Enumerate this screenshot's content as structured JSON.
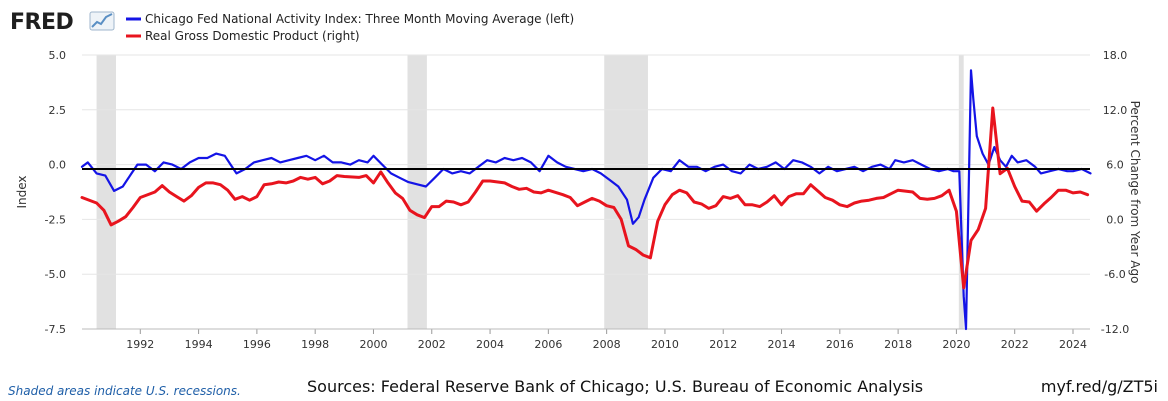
{
  "branding": {
    "logo_text": "FRED"
  },
  "footer": {
    "recession_note": "Shaded areas indicate U.S. recessions.",
    "sources": "Sources: Federal Reserve Bank of Chicago; U.S. Bureau of Economic Analysis",
    "short_url": "myf.red/g/ZT5i"
  },
  "chart_data": {
    "type": "line",
    "title": "",
    "x_range": [
      "1990-01",
      "2024-08"
    ],
    "x_ticks": [
      "1992",
      "1994",
      "1996",
      "1998",
      "2000",
      "2002",
      "2004",
      "2006",
      "2008",
      "2010",
      "2012",
      "2014",
      "2016",
      "2018",
      "2020",
      "2022",
      "2024"
    ],
    "left_axis": {
      "label": "Index",
      "range": [
        -7.5,
        5.0
      ],
      "ticks": [
        "5.0",
        "2.5",
        "0.0",
        "-2.5",
        "-5.0",
        "-7.5"
      ]
    },
    "right_axis": {
      "label": "Percent Change from Year Ago",
      "range": [
        -12.0,
        18.0
      ],
      "ticks": [
        "18.0",
        "12.0",
        "6.0",
        "0.0",
        "-6.0",
        "-12.0"
      ]
    },
    "reference_line": {
      "axis": "left",
      "value": -0.2,
      "color": "#000000"
    },
    "grid": true,
    "legend_position": "top-left",
    "recessions": [
      {
        "start": "1990-07",
        "end": "1991-03"
      },
      {
        "start": "2001-03",
        "end": "2001-11"
      },
      {
        "start": "2007-12",
        "end": "2009-06"
      },
      {
        "start": "2020-02",
        "end": "2020-04"
      }
    ],
    "series": [
      {
        "name": "Chicago Fed National Activity Index: Three Month Moving Average (left)",
        "axis": "left",
        "color": "#1414e6",
        "points": [
          [
            1990.0,
            -0.1
          ],
          [
            1990.2,
            0.1
          ],
          [
            1990.5,
            -0.4
          ],
          [
            1990.8,
            -0.5
          ],
          [
            1991.1,
            -1.2
          ],
          [
            1991.4,
            -1.0
          ],
          [
            1991.7,
            -0.4
          ],
          [
            1991.9,
            0.0
          ],
          [
            1992.2,
            0.0
          ],
          [
            1992.5,
            -0.3
          ],
          [
            1992.8,
            0.1
          ],
          [
            1993.1,
            0.0
          ],
          [
            1993.4,
            -0.2
          ],
          [
            1993.7,
            0.1
          ],
          [
            1994.0,
            0.3
          ],
          [
            1994.3,
            0.3
          ],
          [
            1994.6,
            0.5
          ],
          [
            1994.9,
            0.4
          ],
          [
            1995.1,
            0.0
          ],
          [
            1995.3,
            -0.4
          ],
          [
            1995.6,
            -0.2
          ],
          [
            1995.9,
            0.1
          ],
          [
            1996.2,
            0.2
          ],
          [
            1996.5,
            0.3
          ],
          [
            1996.8,
            0.1
          ],
          [
            1997.1,
            0.2
          ],
          [
            1997.4,
            0.3
          ],
          [
            1997.7,
            0.4
          ],
          [
            1998.0,
            0.2
          ],
          [
            1998.3,
            0.4
          ],
          [
            1998.6,
            0.1
          ],
          [
            1998.9,
            0.1
          ],
          [
            1999.2,
            0.0
          ],
          [
            1999.5,
            0.2
          ],
          [
            1999.8,
            0.1
          ],
          [
            2000.0,
            0.4
          ],
          [
            2000.3,
            0.0
          ],
          [
            2000.6,
            -0.4
          ],
          [
            2000.9,
            -0.6
          ],
          [
            2001.2,
            -0.8
          ],
          [
            2001.5,
            -0.9
          ],
          [
            2001.8,
            -1.0
          ],
          [
            2002.1,
            -0.6
          ],
          [
            2002.4,
            -0.2
          ],
          [
            2002.7,
            -0.4
          ],
          [
            2003.0,
            -0.3
          ],
          [
            2003.3,
            -0.4
          ],
          [
            2003.6,
            -0.1
          ],
          [
            2003.9,
            0.2
          ],
          [
            2004.2,
            0.1
          ],
          [
            2004.5,
            0.3
          ],
          [
            2004.8,
            0.2
          ],
          [
            2005.1,
            0.3
          ],
          [
            2005.4,
            0.1
          ],
          [
            2005.7,
            -0.3
          ],
          [
            2006.0,
            0.4
          ],
          [
            2006.3,
            0.1
          ],
          [
            2006.6,
            -0.1
          ],
          [
            2006.9,
            -0.2
          ],
          [
            2007.2,
            -0.3
          ],
          [
            2007.5,
            -0.2
          ],
          [
            2007.8,
            -0.4
          ],
          [
            2008.1,
            -0.7
          ],
          [
            2008.4,
            -1.0
          ],
          [
            2008.7,
            -1.6
          ],
          [
            2008.9,
            -2.7
          ],
          [
            2009.1,
            -2.4
          ],
          [
            2009.3,
            -1.6
          ],
          [
            2009.6,
            -0.6
          ],
          [
            2009.9,
            -0.2
          ],
          [
            2010.2,
            -0.3
          ],
          [
            2010.5,
            0.2
          ],
          [
            2010.8,
            -0.1
          ],
          [
            2011.1,
            -0.1
          ],
          [
            2011.4,
            -0.3
          ],
          [
            2011.7,
            -0.1
          ],
          [
            2012.0,
            0.0
          ],
          [
            2012.3,
            -0.3
          ],
          [
            2012.6,
            -0.4
          ],
          [
            2012.9,
            0.0
          ],
          [
            2013.2,
            -0.2
          ],
          [
            2013.5,
            -0.1
          ],
          [
            2013.8,
            0.1
          ],
          [
            2014.1,
            -0.2
          ],
          [
            2014.4,
            0.2
          ],
          [
            2014.7,
            0.1
          ],
          [
            2015.0,
            -0.1
          ],
          [
            2015.3,
            -0.4
          ],
          [
            2015.6,
            -0.1
          ],
          [
            2015.9,
            -0.3
          ],
          [
            2016.2,
            -0.2
          ],
          [
            2016.5,
            -0.1
          ],
          [
            2016.8,
            -0.3
          ],
          [
            2017.1,
            -0.1
          ],
          [
            2017.4,
            0.0
          ],
          [
            2017.7,
            -0.2
          ],
          [
            2017.9,
            0.2
          ],
          [
            2018.2,
            0.1
          ],
          [
            2018.5,
            0.2
          ],
          [
            2018.8,
            0.0
          ],
          [
            2019.1,
            -0.2
          ],
          [
            2019.4,
            -0.3
          ],
          [
            2019.7,
            -0.2
          ],
          [
            2019.9,
            -0.3
          ],
          [
            2020.1,
            -0.3
          ],
          [
            2020.25,
            -6.0
          ],
          [
            2020.33,
            -7.5
          ],
          [
            2020.5,
            4.3
          ],
          [
            2020.58,
            3.0
          ],
          [
            2020.7,
            1.3
          ],
          [
            2020.9,
            0.5
          ],
          [
            2021.1,
            0.0
          ],
          [
            2021.3,
            0.8
          ],
          [
            2021.5,
            0.2
          ],
          [
            2021.7,
            -0.1
          ],
          [
            2021.9,
            0.4
          ],
          [
            2022.1,
            0.1
          ],
          [
            2022.4,
            0.2
          ],
          [
            2022.7,
            -0.1
          ],
          [
            2022.9,
            -0.4
          ],
          [
            2023.2,
            -0.3
          ],
          [
            2023.5,
            -0.2
          ],
          [
            2023.8,
            -0.3
          ],
          [
            2024.0,
            -0.3
          ],
          [
            2024.3,
            -0.2
          ],
          [
            2024.6,
            -0.4
          ]
        ]
      },
      {
        "name": "Real Gross Domestic Product (right)",
        "axis": "right",
        "color": "#e8141e",
        "points": [
          [
            1990.0,
            2.4
          ],
          [
            1990.5,
            1.8
          ],
          [
            1990.75,
            1.0
          ],
          [
            1991.0,
            -0.6
          ],
          [
            1991.25,
            -0.2
          ],
          [
            1991.5,
            0.3
          ],
          [
            1991.75,
            1.3
          ],
          [
            1992.0,
            2.4
          ],
          [
            1992.5,
            3.0
          ],
          [
            1992.75,
            3.7
          ],
          [
            1993.0,
            3.0
          ],
          [
            1993.25,
            2.5
          ],
          [
            1993.5,
            2.0
          ],
          [
            1993.75,
            2.6
          ],
          [
            1994.0,
            3.5
          ],
          [
            1994.25,
            4.0
          ],
          [
            1994.5,
            4.0
          ],
          [
            1994.75,
            3.8
          ],
          [
            1995.0,
            3.2
          ],
          [
            1995.25,
            2.2
          ],
          [
            1995.5,
            2.5
          ],
          [
            1995.75,
            2.1
          ],
          [
            1996.0,
            2.5
          ],
          [
            1996.25,
            3.8
          ],
          [
            1996.5,
            3.9
          ],
          [
            1996.75,
            4.1
          ],
          [
            1997.0,
            4.0
          ],
          [
            1997.25,
            4.2
          ],
          [
            1997.5,
            4.6
          ],
          [
            1997.75,
            4.4
          ],
          [
            1998.0,
            4.6
          ],
          [
            1998.25,
            3.9
          ],
          [
            1998.5,
            4.2
          ],
          [
            1998.75,
            4.8
          ],
          [
            1999.0,
            4.7
          ],
          [
            1999.5,
            4.6
          ],
          [
            1999.75,
            4.8
          ],
          [
            2000.0,
            4.0
          ],
          [
            2000.25,
            5.2
          ],
          [
            2000.5,
            4.0
          ],
          [
            2000.75,
            2.9
          ],
          [
            2001.0,
            2.3
          ],
          [
            2001.25,
            1.0
          ],
          [
            2001.5,
            0.5
          ],
          [
            2001.75,
            0.2
          ],
          [
            2002.0,
            1.4
          ],
          [
            2002.25,
            1.4
          ],
          [
            2002.5,
            2.0
          ],
          [
            2002.75,
            1.9
          ],
          [
            2003.0,
            1.6
          ],
          [
            2003.25,
            1.9
          ],
          [
            2003.5,
            3.0
          ],
          [
            2003.75,
            4.2
          ],
          [
            2004.0,
            4.2
          ],
          [
            2004.5,
            4.0
          ],
          [
            2004.75,
            3.6
          ],
          [
            2005.0,
            3.3
          ],
          [
            2005.25,
            3.4
          ],
          [
            2005.5,
            3.0
          ],
          [
            2005.75,
            2.9
          ],
          [
            2006.0,
            3.2
          ],
          [
            2006.5,
            2.7
          ],
          [
            2006.75,
            2.4
          ],
          [
            2007.0,
            1.5
          ],
          [
            2007.25,
            1.9
          ],
          [
            2007.5,
            2.3
          ],
          [
            2007.75,
            2.0
          ],
          [
            2008.0,
            1.5
          ],
          [
            2008.25,
            1.3
          ],
          [
            2008.5,
            0.0
          ],
          [
            2008.75,
            -2.9
          ],
          [
            2009.0,
            -3.3
          ],
          [
            2009.25,
            -3.9
          ],
          [
            2009.5,
            -4.2
          ],
          [
            2009.75,
            -0.2
          ],
          [
            2010.0,
            1.6
          ],
          [
            2010.25,
            2.7
          ],
          [
            2010.5,
            3.2
          ],
          [
            2010.75,
            2.9
          ],
          [
            2011.0,
            1.9
          ],
          [
            2011.25,
            1.7
          ],
          [
            2011.5,
            1.2
          ],
          [
            2011.75,
            1.5
          ],
          [
            2012.0,
            2.5
          ],
          [
            2012.25,
            2.3
          ],
          [
            2012.5,
            2.6
          ],
          [
            2012.75,
            1.6
          ],
          [
            2013.0,
            1.6
          ],
          [
            2013.25,
            1.4
          ],
          [
            2013.5,
            1.9
          ],
          [
            2013.75,
            2.6
          ],
          [
            2014.0,
            1.6
          ],
          [
            2014.25,
            2.5
          ],
          [
            2014.5,
            2.8
          ],
          [
            2014.75,
            2.8
          ],
          [
            2015.0,
            3.8
          ],
          [
            2015.25,
            3.1
          ],
          [
            2015.5,
            2.4
          ],
          [
            2015.75,
            2.1
          ],
          [
            2016.0,
            1.6
          ],
          [
            2016.25,
            1.4
          ],
          [
            2016.5,
            1.8
          ],
          [
            2016.75,
            2.0
          ],
          [
            2017.0,
            2.1
          ],
          [
            2017.25,
            2.3
          ],
          [
            2017.5,
            2.4
          ],
          [
            2017.75,
            2.8
          ],
          [
            2018.0,
            3.2
          ],
          [
            2018.25,
            3.1
          ],
          [
            2018.5,
            3.0
          ],
          [
            2018.75,
            2.3
          ],
          [
            2019.0,
            2.2
          ],
          [
            2019.25,
            2.3
          ],
          [
            2019.5,
            2.6
          ],
          [
            2019.75,
            3.2
          ],
          [
            2020.0,
            0.9
          ],
          [
            2020.25,
            -7.5
          ],
          [
            2020.5,
            -2.3
          ],
          [
            2020.75,
            -1.1
          ],
          [
            2021.0,
            1.2
          ],
          [
            2021.25,
            12.2
          ],
          [
            2021.5,
            5.0
          ],
          [
            2021.75,
            5.6
          ],
          [
            2022.0,
            3.6
          ],
          [
            2022.25,
            2.0
          ],
          [
            2022.5,
            1.9
          ],
          [
            2022.75,
            0.9
          ],
          [
            2023.0,
            1.7
          ],
          [
            2023.25,
            2.4
          ],
          [
            2023.5,
            3.2
          ],
          [
            2023.75,
            3.2
          ],
          [
            2024.0,
            2.9
          ],
          [
            2024.25,
            3.0
          ],
          [
            2024.5,
            2.7
          ]
        ]
      }
    ]
  }
}
